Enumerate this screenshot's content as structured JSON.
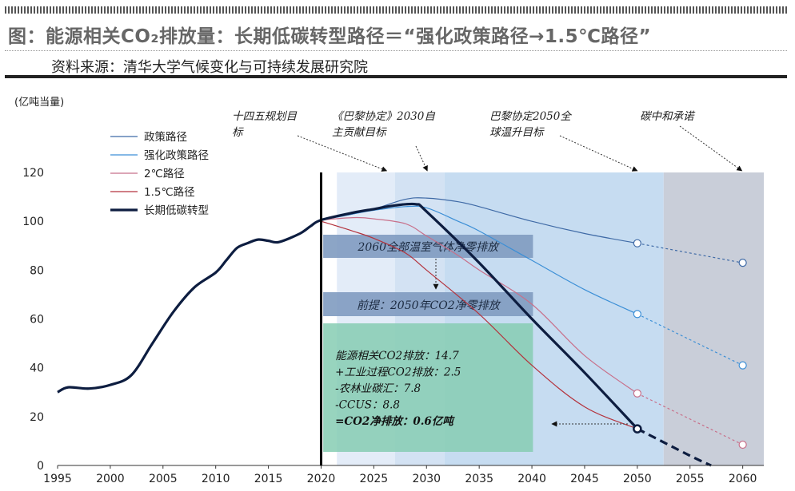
{
  "header": {
    "title": "图：能源相关CO₂排放量：长期低碳转型路径＝“强化政策路径→1.5℃路径”",
    "source": "资料来源：清华大学气候变化与可持续发展研究院"
  },
  "chart_data": {
    "type": "line",
    "ylabel": "(亿吨当量)",
    "ylim": [
      0,
      120
    ],
    "yticks": [
      "0",
      "20",
      "40",
      "60",
      "80",
      "100",
      "120"
    ],
    "xlim": [
      1995,
      2062
    ],
    "xticks": [
      "1995",
      "2000",
      "2005",
      "2010",
      "2015",
      "2020",
      "2025",
      "2030",
      "2035",
      "2040",
      "2045",
      "2050",
      "2055",
      "2060"
    ],
    "legend_position": "top-left",
    "grid": false,
    "colors": {
      "policy": "#3f6aa6",
      "strengthened": "#3c8fd6",
      "two_degree": "#c8708a",
      "one_five": "#b4333d",
      "transition": "#0d1d40"
    },
    "series": [
      {
        "name": "政策路径",
        "x": [
          2020,
          2023,
          2025,
          2028,
          2030,
          2033,
          2035,
          2040,
          2045,
          2050
        ],
        "y": [
          100.5,
          103,
          105,
          109,
          109.5,
          108,
          106,
          100,
          95,
          91
        ],
        "x_projection": [
          2050,
          2060
        ],
        "y_projection": [
          91,
          83
        ]
      },
      {
        "name": "强化政策路径",
        "x": [
          2020,
          2023,
          2025,
          2028,
          2030,
          2033,
          2035,
          2040,
          2045,
          2050
        ],
        "y": [
          100.5,
          103,
          104.5,
          106,
          105.5,
          100,
          96,
          84,
          72,
          62
        ],
        "x_projection": [
          2050,
          2060
        ],
        "y_projection": [
          62,
          41
        ]
      },
      {
        "name": "2℃路径",
        "x": [
          2020,
          2023,
          2025,
          2028,
          2030,
          2033,
          2035,
          2040,
          2045,
          2050
        ],
        "y": [
          100.5,
          101.5,
          101,
          99,
          94,
          86,
          80,
          66,
          45,
          29.5
        ],
        "x_projection": [
          2050,
          2060
        ],
        "y_projection": [
          29.5,
          8.5
        ]
      },
      {
        "name": "1.5℃路径",
        "x": [
          2020,
          2023,
          2025,
          2028,
          2030,
          2035,
          2040,
          2045,
          2050
        ],
        "y": [
          100,
          96,
          93,
          87,
          80,
          62,
          41,
          24,
          15
        ]
      },
      {
        "name": "长期低碳转型",
        "x": [
          1995,
          1996,
          1998,
          2000,
          2002,
          2004,
          2006,
          2008,
          2010,
          2011,
          2012,
          2013,
          2014,
          2015,
          2016,
          2018,
          2019,
          2020,
          2023,
          2025,
          2027,
          2029,
          2030,
          2035,
          2040,
          2045,
          2050
        ],
        "y": [
          30,
          32,
          31.5,
          33,
          37,
          50,
          63,
          73,
          79,
          84,
          89,
          91,
          92.5,
          92,
          91.5,
          95,
          98,
          100.5,
          103.5,
          105,
          106.5,
          107,
          104,
          83,
          60,
          38,
          15
        ],
        "x_projection": [
          2050,
          2055,
          2057
        ],
        "y_projection": [
          15,
          4,
          0
        ]
      }
    ],
    "markers": [
      {
        "x": 2050,
        "y": 91
      },
      {
        "x": 2050,
        "y": 62
      },
      {
        "x": 2050,
        "y": 29.5
      },
      {
        "x": 2050,
        "y": 15
      },
      {
        "x": 2060,
        "y": 83
      },
      {
        "x": 2060,
        "y": 41
      },
      {
        "x": 2060,
        "y": 8.5
      }
    ],
    "shaded_periods": [
      {
        "from": 2021.5,
        "to": 2027,
        "color": "#e3ecf8"
      },
      {
        "from": 2027,
        "to": 2031.7,
        "color": "#d3e2f3"
      },
      {
        "from": 2031.7,
        "to": 2052.5,
        "color": "#c6dcf1"
      },
      {
        "from": 2052.5,
        "to": 2062,
        "color": "#c9ced9"
      }
    ],
    "milestones": [
      {
        "text_lines": [
          "十四五规划目",
          "标"
        ],
        "x": 2026
      },
      {
        "text_lines": [
          "《巴黎协定》2030自",
          "主贡献目标"
        ],
        "x": 2030
      },
      {
        "text_lines": [
          "巴黎协定2050全",
          "球温升目标"
        ],
        "x": 2050
      },
      {
        "text_lines": [
          "碳中和承诺"
        ],
        "x": 2060
      }
    ],
    "boxes": [
      {
        "text": "2060全部温室气体净零排放"
      },
      {
        "text": "前提：2050年CO2净零排放"
      }
    ],
    "breakdown_lines": [
      "能源相关CO2排放：14.7",
      "+工业过程CO2排放：2.5",
      "-农林业碳汇：7.8",
      "-CCUS：8.8",
      "=CO2净排放：0.6亿吨"
    ]
  }
}
